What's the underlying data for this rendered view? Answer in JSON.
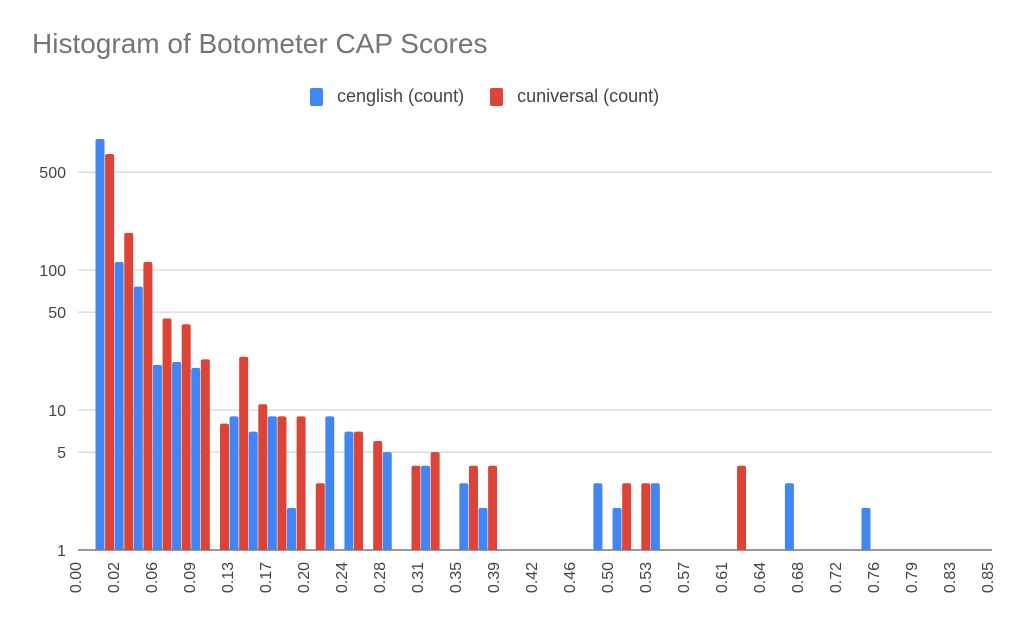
{
  "chart_data": {
    "type": "bar",
    "title": "Histogram of Botometer CAP Scores",
    "legend_position": "top",
    "y_scale": "log",
    "ylim": [
      1,
      1000
    ],
    "y_ticks": [
      1,
      5,
      10,
      50,
      100,
      500
    ],
    "y_tick_labels": [
      "1",
      "5",
      "10",
      "50",
      "100",
      "500"
    ],
    "x_tick_labels": [
      "0.00",
      "0.02",
      "0.06",
      "0.09",
      "0.13",
      "0.17",
      "0.20",
      "0.24",
      "0.28",
      "0.31",
      "0.35",
      "0.39",
      "0.42",
      "0.46",
      "0.50",
      "0.53",
      "0.57",
      "0.61",
      "0.64",
      "0.68",
      "0.72",
      "0.76",
      "0.79",
      "0.83",
      "0.85"
    ],
    "grid": true,
    "series": [
      {
        "name": "cenglish (count)",
        "color": "#4285f4",
        "values": [
          863,
          114,
          76,
          21,
          22,
          20,
          null,
          9,
          7,
          9,
          2,
          null,
          9,
          7,
          null,
          5,
          null,
          4,
          null,
          3,
          2,
          null,
          null,
          null,
          null,
          null,
          3,
          2,
          null,
          3,
          null,
          null,
          null,
          null,
          null,
          null,
          3,
          null,
          null,
          null,
          2
        ]
      },
      {
        "name": "cuniversal (count)",
        "color": "#db4437",
        "values": [
          674,
          184,
          114,
          45,
          41,
          23,
          8,
          24,
          11,
          9,
          9,
          3,
          null,
          7,
          6,
          null,
          4,
          5,
          null,
          4,
          4,
          null,
          null,
          null,
          null,
          null,
          null,
          3,
          3,
          null,
          null,
          null,
          null,
          4
        ]
      }
    ]
  }
}
